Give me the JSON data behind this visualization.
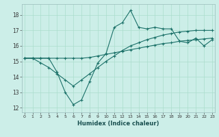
{
  "xlabel": "Humidex (Indice chaleur)",
  "bg_color": "#cceee8",
  "grid_color": "#aaddcc",
  "line_color": "#1a7068",
  "xticks": [
    0,
    1,
    2,
    3,
    4,
    5,
    6,
    7,
    8,
    9,
    10,
    11,
    12,
    13,
    14,
    15,
    16,
    17,
    18,
    19,
    20,
    21,
    22,
    23
  ],
  "yticks": [
    12,
    13,
    14,
    15,
    16,
    17,
    18
  ],
  "ylim": [
    11.7,
    18.7
  ],
  "xlim": [
    -0.3,
    23.3
  ],
  "line1_y": [
    15.2,
    15.2,
    15.2,
    15.2,
    15.2,
    15.2,
    15.2,
    15.2,
    15.25,
    15.35,
    15.45,
    15.55,
    15.65,
    15.75,
    15.85,
    15.95,
    16.05,
    16.15,
    16.2,
    16.3,
    16.35,
    16.4,
    16.45,
    16.5
  ],
  "line2_y": [
    15.2,
    15.2,
    15.2,
    15.2,
    14.3,
    13.0,
    12.2,
    12.5,
    13.7,
    14.9,
    15.5,
    17.2,
    17.5,
    18.3,
    17.2,
    17.1,
    17.2,
    17.1,
    17.1,
    16.3,
    16.2,
    16.5,
    16.0,
    16.4
  ],
  "line3_y": [
    15.2,
    15.2,
    14.9,
    14.6,
    14.2,
    13.8,
    13.4,
    13.8,
    14.2,
    14.6,
    15.0,
    15.35,
    15.7,
    16.0,
    16.2,
    16.4,
    16.55,
    16.7,
    16.8,
    16.9,
    16.95,
    17.0,
    17.0,
    17.0
  ]
}
